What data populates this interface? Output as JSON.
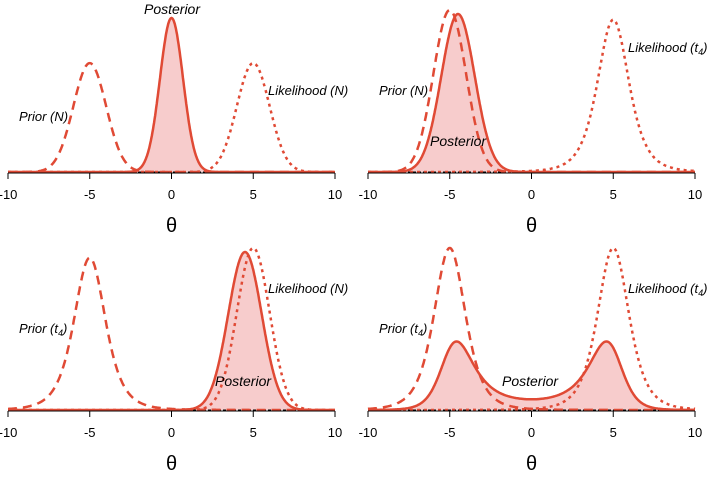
{
  "colors": {
    "curve": "#e04a35",
    "fill": "#f7cccc",
    "axis": "#000000"
  },
  "chart_data": [
    {
      "type": "line",
      "xlabel": "θ",
      "xlim": [
        -10,
        10
      ],
      "ticks": [
        -10,
        -5,
        0,
        5,
        10
      ],
      "prior": {
        "dist": "normal",
        "location": -5,
        "scale": 1,
        "label": "Prior (N)",
        "sub": ""
      },
      "likelihood": {
        "dist": "normal",
        "location": 5,
        "scale": 1,
        "label": "Likelihood (N)",
        "sub": ""
      },
      "posterior_label": "Posterior"
    },
    {
      "type": "line",
      "xlabel": "θ",
      "xlim": [
        -10,
        10
      ],
      "ticks": [
        -10,
        -5,
        0,
        5,
        10
      ],
      "prior": {
        "dist": "normal",
        "location": -5,
        "scale": 1,
        "label": "Prior (N)",
        "sub": ""
      },
      "likelihood": {
        "dist": "t",
        "df": 4,
        "location": 5,
        "scale": 1,
        "label": "Likelihood (t",
        "sub": "4"
      },
      "posterior_label": "Posterior"
    },
    {
      "type": "line",
      "xlabel": "θ",
      "xlim": [
        -10,
        10
      ],
      "ticks": [
        -10,
        -5,
        0,
        5,
        10
      ],
      "prior": {
        "dist": "t",
        "df": 4,
        "location": -5,
        "scale": 1,
        "label": "Prior (t",
        "sub": "4"
      },
      "likelihood": {
        "dist": "normal",
        "location": 5,
        "scale": 1,
        "label": "Likelihood (N)",
        "sub": ""
      },
      "posterior_label": "Posterior"
    },
    {
      "type": "line",
      "xlabel": "θ",
      "xlim": [
        -10,
        10
      ],
      "ticks": [
        -10,
        -5,
        0,
        5,
        10
      ],
      "prior": {
        "dist": "t",
        "df": 4,
        "location": -5,
        "scale": 1,
        "label": "Prior (t",
        "sub": "4"
      },
      "likelihood": {
        "dist": "t",
        "df": 4,
        "location": 5,
        "scale": 1,
        "label": "Likelihood (t",
        "sub": "4"
      },
      "posterior_label": "Posterior"
    }
  ]
}
